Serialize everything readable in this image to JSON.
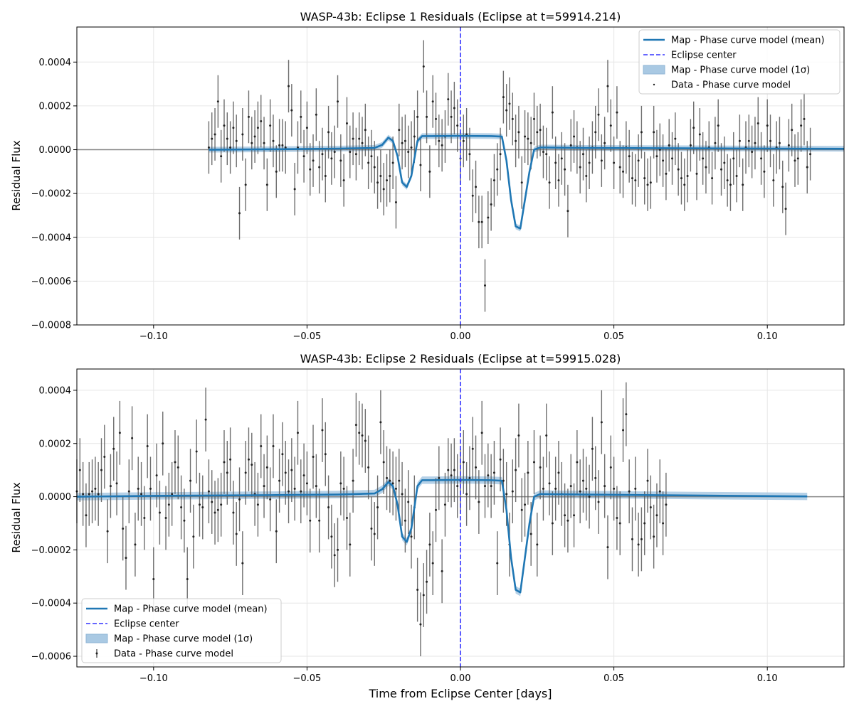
{
  "figure": {
    "colors": {
      "model": "#1f77b4",
      "band": "#a9c9e3",
      "data": "#222222",
      "errorbar": "#555555",
      "eclipse_line": "#3333ff",
      "zero_line": "#888888",
      "grid": "#e6e6e6"
    }
  },
  "chart_data": [
    {
      "type": "scatter",
      "title": "WASP-43b: Eclipse 1 Residuals (Eclipse at t=59914.214)",
      "xlabel": "",
      "ylabel": "Residual Flux",
      "xlim": [
        -0.125,
        0.125
      ],
      "ylim": [
        -0.0008,
        0.00056
      ],
      "xticks": [
        -0.1,
        -0.05,
        0.0,
        0.05,
        0.1
      ],
      "xtick_labels": [
        "−0.10",
        "−0.05",
        "0.00",
        "0.05",
        "0.10"
      ],
      "yticks": [
        -0.0008,
        -0.0006,
        -0.0004,
        -0.0002,
        0.0,
        0.0002,
        0.0004
      ],
      "ytick_labels": [
        "−0.0008",
        "−0.0006",
        "−0.0004",
        "−0.0002",
        "0.0000",
        "0.0002",
        "0.0004"
      ],
      "grid": true,
      "legend_position": "top-right",
      "legend": [
        {
          "label": "Map - Phase curve model (mean)",
          "kind": "line"
        },
        {
          "label": "Eclipse center",
          "kind": "dashed"
        },
        {
          "label": "Map - Phase curve model (1σ)",
          "kind": "band"
        },
        {
          "label": "Data - Phase curve model",
          "kind": "point"
        }
      ],
      "eclipse_center": 0.0,
      "model": {
        "x": [
          -0.082,
          -0.06,
          -0.04,
          -0.028,
          -0.0255,
          -0.0235,
          -0.022,
          -0.0205,
          -0.019,
          -0.0175,
          -0.016,
          -0.014,
          -0.0125,
          -0.0095,
          0.0,
          0.01,
          0.0135,
          0.015,
          0.0165,
          0.018,
          0.0195,
          0.021,
          0.0225,
          0.024,
          0.026,
          0.04,
          0.08,
          0.125
        ],
        "y": [
          0.0,
          2e-06,
          5e-06,
          8e-06,
          2.2e-05,
          5.5e-05,
          4e-05,
          -3e-05,
          -0.00015,
          -0.00017,
          -0.00012,
          4e-05,
          6.2e-05,
          6.2e-05,
          6.3e-05,
          6.2e-05,
          6e-05,
          -5e-05,
          -0.00023,
          -0.00035,
          -0.00036,
          -0.00023,
          -0.0001,
          0.0,
          1e-05,
          8e-06,
          6e-06,
          4e-06
        ],
        "band": 1.3e-05
      },
      "data": {
        "x_start": -0.082,
        "dx": 0.001,
        "yerr": 0.00012,
        "y": [
          1e-05,
          5e-05,
          7e-05,
          0.00022,
          -3e-05,
          0.00011,
          5e-05,
          1e-05,
          0.0001,
          4e-05,
          -0.00029,
          7e-05,
          -0.00016,
          0.00015,
          3e-05,
          6e-05,
          0.0001,
          0.00013,
          3e-05,
          -0.00016,
          0.00011,
          4e-05,
          -0.0001,
          2e-05,
          2e-05,
          1e-05,
          0.00029,
          0.00018,
          -0.00018,
          1e-05,
          0.00015,
          -3e-05,
          0.0001,
          -9e-05,
          -5e-05,
          0.00016,
          -8e-05,
          -2e-05,
          -0.00012,
          8e-05,
          -4e-05,
          -1e-05,
          0.00022,
          -5e-05,
          -0.00014,
          0.00012,
          -1e-05,
          5e-05,
          -2e-05,
          5e-05,
          3e-05,
          9e-05,
          -6e-05,
          -3e-05,
          -8e-05,
          -0.00015,
          -0.00012,
          -0.00018,
          -0.00014,
          -0.00012,
          -6e-05,
          -0.00024,
          9e-05,
          3e-05,
          4e-05,
          -1e-05,
          1e-05,
          6e-05,
          0.00015,
          -7e-05,
          0.00038,
          0.00015,
          -0.0001,
          0.00022,
          0.00014,
          4e-05,
          2e-05,
          6e-05,
          0.00023,
          0.00015,
          0.00019,
          0.00011,
          -4e-05,
          4e-05,
          7e-05,
          -2e-05,
          -0.00021,
          -0.00017,
          -0.00033,
          -0.00033,
          -0.00062,
          -0.00031,
          -0.00025,
          -0.00014,
          -9e-05,
          -2e-05,
          0.00024,
          0.00018,
          0.00021,
          0.00014,
          4e-05,
          8e-05,
          -0.00015,
          6e-05,
          5e-05,
          3e-05,
          0.00014,
          8e-05,
          9e-05,
          -1e-05,
          -2e-05,
          -0.00015,
          0.00017,
          -6e-05,
          -0.00014,
          -4e-05,
          -9e-05,
          -0.00028,
          2e-05,
          6e-05,
          1e-05,
          -8e-05,
          -2e-05,
          -0.00012,
          -6e-05,
          1e-05,
          8e-05,
          0.00016,
          -5e-05,
          3e-05,
          0.00029,
          0.00011,
          -6e-05,
          0.00017,
          -8e-05,
          -0.0001,
          1e-05,
          -3e-05,
          -0.00013,
          -0.00014,
          -5e-05,
          8e-05,
          -0.00013,
          -0.00016,
          -0.00015,
          8e-05,
          -3e-05,
          0.0,
          -5e-05,
          -0.00011,
          2e-05,
          -4e-05,
          5e-05,
          -9e-05,
          -0.00013,
          -0.00016,
          -0.00012,
          2e-05,
          0.0001,
          -0.00011,
          7e-05,
          -4e-05,
          -8e-05,
          1e-05,
          -0.00013,
          3e-05,
          0.00011,
          -9e-05,
          -6e-05,
          -0.00014,
          -0.00016,
          -4e-05,
          -0.00012,
          4e-05,
          -0.00016,
          1e-05,
          4e-05,
          -1e-05,
          3e-05,
          0.00012,
          -4e-05,
          -0.0001,
          0.00011,
          4e-05,
          -0.00014,
          1e-05,
          3e-05,
          -0.00017,
          -0.00027,
          2e-05,
          9e-05,
          -5e-05,
          -4e-05,
          0.00011,
          0.00014,
          -8e-05,
          -2e-05
        ]
      }
    },
    {
      "type": "scatter",
      "title": "WASP-43b: Eclipse 2 Residuals (Eclipse at t=59915.028)",
      "xlabel": "Time from Eclipse Center [days]",
      "ylabel": "Residual Flux",
      "xlim": [
        -0.125,
        0.125
      ],
      "ylim": [
        -0.00064,
        0.00048
      ],
      "xticks": [
        -0.1,
        -0.05,
        0.0,
        0.05,
        0.1
      ],
      "xtick_labels": [
        "−0.10",
        "−0.05",
        "0.00",
        "0.05",
        "0.10"
      ],
      "yticks": [
        -0.0006,
        -0.0004,
        -0.0002,
        0.0,
        0.0002,
        0.0004
      ],
      "ytick_labels": [
        "−0.0006",
        "−0.0004",
        "−0.0002",
        "0.0000",
        "0.0002",
        "0.0004"
      ],
      "grid": true,
      "legend_position": "bottom-left",
      "legend": [
        {
          "label": "Map - Phase curve model (mean)",
          "kind": "line"
        },
        {
          "label": "Eclipse center",
          "kind": "dashed"
        },
        {
          "label": "Map - Phase curve model (1σ)",
          "kind": "band"
        },
        {
          "label": "Data - Phase curve model",
          "kind": "errpoint"
        }
      ],
      "eclipse_center": 0.0,
      "model": {
        "x": [
          -0.125,
          -0.1,
          -0.06,
          -0.04,
          -0.028,
          -0.0255,
          -0.0235,
          -0.022,
          -0.0205,
          -0.019,
          -0.0175,
          -0.016,
          -0.014,
          -0.0125,
          -0.0095,
          0.0,
          0.01,
          0.0135,
          0.015,
          0.0165,
          0.018,
          0.0195,
          0.021,
          0.0225,
          0.024,
          0.026,
          0.04,
          0.08,
          0.113
        ],
        "y": [
          0.0,
          3e-06,
          6e-06,
          8e-06,
          1.2e-05,
          2.8e-05,
          5.5e-05,
          4e-05,
          -3e-05,
          -0.00015,
          -0.00017,
          -0.00012,
          4e-05,
          6.2e-05,
          6.2e-05,
          6.3e-05,
          6.2e-05,
          6e-05,
          -5e-05,
          -0.00023,
          -0.00035,
          -0.00036,
          -0.00023,
          -0.0001,
          0.0,
          1e-05,
          8e-06,
          4e-06,
          1e-06
        ],
        "band": 1.4e-05
      },
      "data": {
        "x_start": -0.125,
        "dx": 0.001,
        "yerr": 0.00012,
        "y": [
          2e-05,
          0.0001,
          1e-05,
          -7e-05,
          1e-05,
          2e-05,
          3e-05,
          1e-05,
          0.0001,
          0.00015,
          -0.00013,
          4e-05,
          0.00018,
          5e-05,
          0.00024,
          -0.00012,
          -0.00023,
          2e-05,
          0.00022,
          -0.00018,
          3e-05,
          1e-05,
          -8e-05,
          0.00019,
          3e-05,
          -0.00031,
          8e-05,
          -6e-05,
          0.0002,
          -8e-05,
          -3e-05,
          1e-05,
          0.00013,
          0.00011,
          -4e-05,
          -9e-05,
          -0.00031,
          6e-05,
          -0.00015,
          0.00017,
          -3e-05,
          -4e-05,
          0.00029,
          2e-05,
          -2e-05,
          -6e-05,
          -5e-05,
          -3e-05,
          0.00013,
          9e-05,
          0.00014,
          -6e-05,
          -0.00014,
          -1e-05,
          -0.00025,
          9e-05,
          0.00014,
          0.00012,
          1e-05,
          -3e-05,
          0.00019,
          4e-05,
          0.00011,
          -1e-05,
          0.00019,
          -0.00013,
          6e-05,
          0.00016,
          9e-05,
          2e-05,
          0.0001,
          3e-05,
          0.00024,
          2e-05,
          8e-05,
          5e-05,
          -9e-05,
          0.00015,
          4e-05,
          -9e-05,
          0.00025,
          0.00016,
          -4e-05,
          -0.00015,
          -0.00022,
          -0.0002,
          5e-05,
          3e-05,
          -8e-05,
          -0.00018,
          6e-05,
          0.00027,
          0.00024,
          0.00023,
          0.00021,
          0.00011,
          -0.00012,
          -0.00014,
          -4e-05,
          0.00028,
          0.00013,
          7e-05,
          6e-05,
          5e-05,
          3e-05,
          6e-05,
          1e-05,
          -9e-05,
          -2e-05,
          -0.00015,
          -4e-05,
          -0.00035,
          -0.00048,
          -0.00037,
          -0.00032,
          -0.00018,
          -0.00025,
          -5e-05,
          7e-05,
          -0.00028,
          -3e-05,
          0.0001,
          8e-05,
          0.0001,
          4e-05,
          6e-05,
          0.00013,
          1e-05,
          7e-05,
          0.00018,
          0.00011,
          -2e-05,
          0.00024,
          4e-05,
          8e-05,
          4e-05,
          9e-05,
          -0.00025,
          0.00014,
          6e-05,
          1e-05,
          -0.00018,
          2e-05,
          0.0001,
          0.00023,
          -5e-05,
          -3e-05,
          9e-05,
          -0.00014,
          0.00013,
          -0.00018,
          0.00011,
          3e-05,
          0.00023,
          5e-05,
          -0.0001,
          3e-05,
          9e-05,
          1e-05,
          -7e-05,
          -9e-05,
          4e-05,
          -7e-05,
          0.00013,
          2e-05,
          6e-05,
          3e-05,
          0.0,
          0.00018,
          7e-05,
          -2e-05,
          0.00028,
          4e-05,
          -0.00019,
          0.00011,
          3e-05,
          -8e-05,
          -0.0001,
          0.00025,
          0.00031,
          2e-05,
          -0.00016,
          3e-05,
          -0.00018,
          -0.00016,
          -0.0001,
          6e-05,
          -4e-05,
          -0.00015,
          -7e-05,
          2e-05,
          -0.0001,
          -3e-05
        ]
      }
    }
  ]
}
